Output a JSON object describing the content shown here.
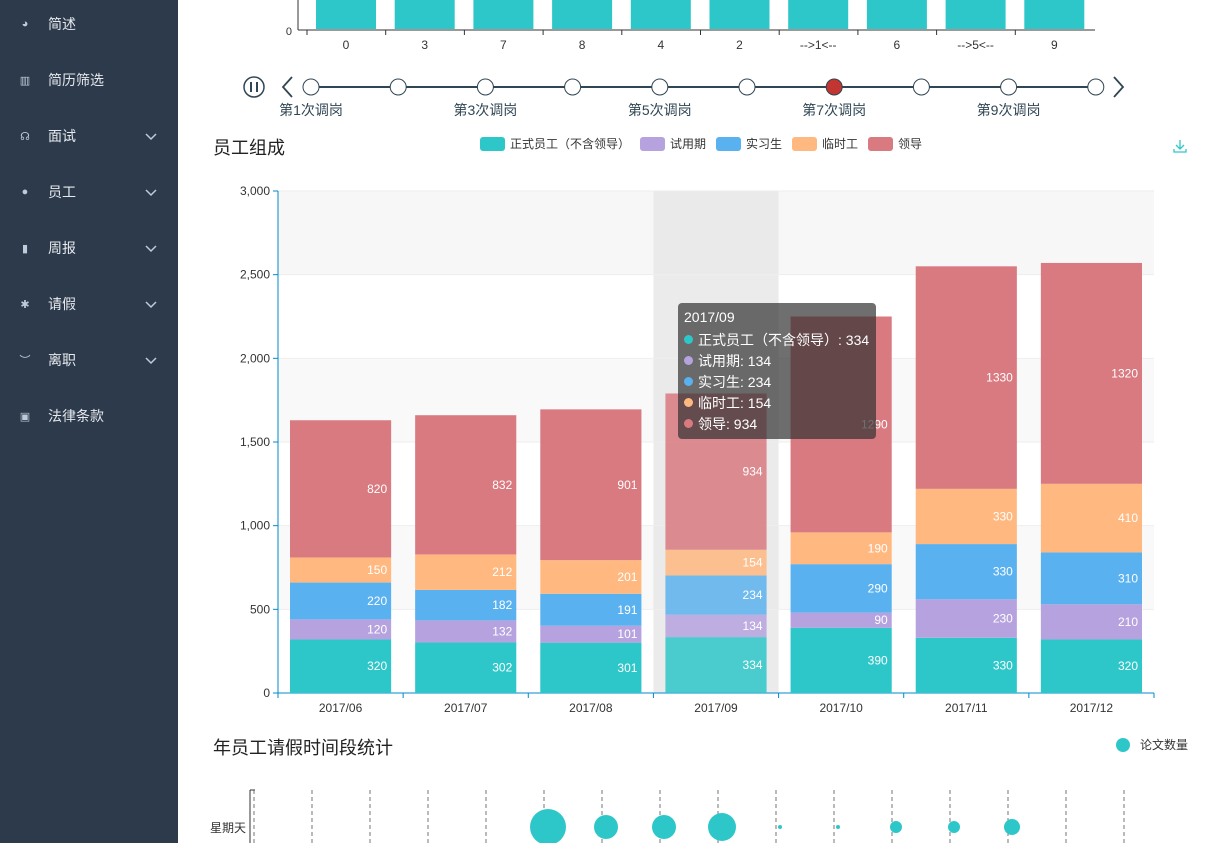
{
  "sidebar": {
    "items": [
      {
        "label": "简述",
        "icon": "dashboard-icon",
        "has_children": false
      },
      {
        "label": "简历筛选",
        "icon": "bar-chart-icon",
        "has_children": false
      },
      {
        "label": "面试",
        "icon": "interview-icon",
        "has_children": true
      },
      {
        "label": "员工",
        "icon": "user-icon",
        "has_children": true
      },
      {
        "label": "周报",
        "icon": "report-icon",
        "has_children": true
      },
      {
        "label": "请假",
        "icon": "bug-icon",
        "has_children": true
      },
      {
        "label": "离职",
        "icon": "eye-closed-icon",
        "has_children": true
      },
      {
        "label": "法律条款",
        "icon": "lock-icon",
        "has_children": false
      }
    ]
  },
  "top_chart": {
    "y_tick": "0",
    "categories": [
      "0",
      "3",
      "7",
      "8",
      "4",
      "2",
      "-->1<--",
      "6",
      "-->5<--",
      "9"
    ]
  },
  "timeline": {
    "labels": [
      "第1次调岗",
      "第3次调岗",
      "第5次调岗",
      "第7次调岗",
      "第9次调岗"
    ],
    "active_index": 6,
    "point_count": 10
  },
  "composition": {
    "title": "员工组成",
    "legend": [
      {
        "name": "正式员工（不含领导）",
        "color": "#2ec7c9"
      },
      {
        "name": "试用期",
        "color": "#b6a2de"
      },
      {
        "name": "实习生",
        "color": "#5ab1ef"
      },
      {
        "name": "临时工",
        "color": "#ffb980"
      },
      {
        "name": "领导",
        "color": "#d87a80"
      }
    ],
    "tooltip": {
      "title": "2017/09",
      "rows": [
        "正式员工（不含领导）: 334",
        "试用期: 134",
        "实习生: 234",
        "临时工: 154",
        "领导: 934"
      ]
    }
  },
  "chart_data": {
    "type": "bar",
    "stacked": true,
    "categories": [
      "2017/06",
      "2017/07",
      "2017/08",
      "2017/09",
      "2017/10",
      "2017/11",
      "2017/12"
    ],
    "ylim": [
      0,
      3000
    ],
    "yticks": [
      "0",
      "500",
      "1,000",
      "1,500",
      "2,000",
      "2,500",
      "3,000"
    ],
    "series": [
      {
        "name": "正式员工（不含领导）",
        "color": "#2ec7c9",
        "values": [
          320,
          302,
          301,
          334,
          390,
          330,
          320
        ]
      },
      {
        "name": "试用期",
        "color": "#b6a2de",
        "values": [
          120,
          132,
          101,
          134,
          90,
          230,
          210
        ]
      },
      {
        "name": "实习生",
        "color": "#5ab1ef",
        "values": [
          220,
          182,
          191,
          234,
          290,
          330,
          310
        ]
      },
      {
        "name": "临时工",
        "color": "#ffb980",
        "values": [
          150,
          212,
          201,
          154,
          190,
          330,
          410
        ]
      },
      {
        "name": "领导",
        "color": "#d87a80",
        "values": [
          820,
          832,
          901,
          934,
          1290,
          1330,
          1320
        ]
      }
    ],
    "highlight_index": 3
  },
  "leave": {
    "title": "年员工请假时间段统计",
    "legend": "论文数量",
    "row_label": "星期天",
    "bubbles": [
      0,
      0,
      0,
      0,
      0,
      0,
      0,
      18,
      12,
      12,
      14,
      3,
      3,
      6,
      6,
      8
    ]
  }
}
